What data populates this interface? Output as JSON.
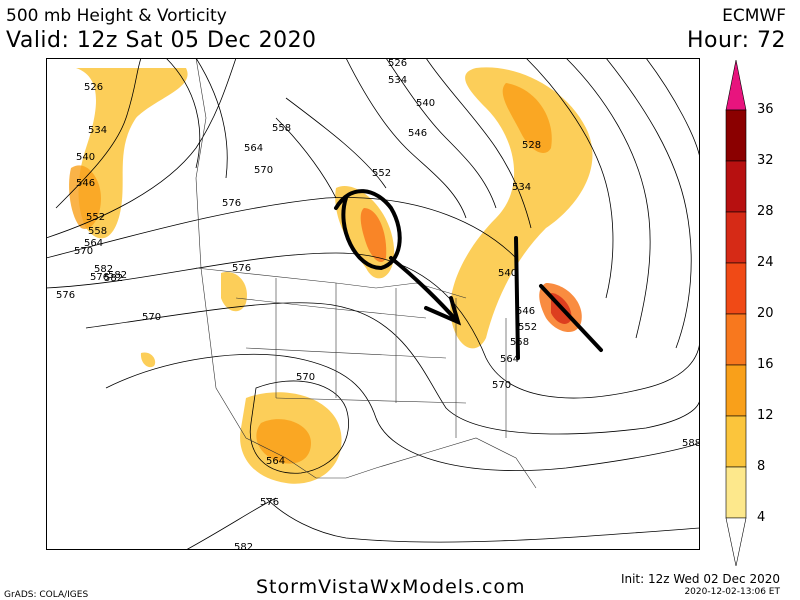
{
  "header": {
    "title_line1": "500 mb Height & Vorticity",
    "title_line2": "Valid: 12z Sat 05 Dec 2020",
    "model": "ECMWF",
    "forecast_hour": "Hour: 72"
  },
  "colorbar": {
    "labels": [
      "36",
      "32",
      "28",
      "24",
      "20",
      "16",
      "12",
      "8",
      "4"
    ],
    "colors": [
      "#e8147e",
      "#8b0000",
      "#b71010",
      "#d62a16",
      "#f04a16",
      "#f8781e",
      "#f9a01a",
      "#fbc53c",
      "#fde88c"
    ]
  },
  "contour_labels": [
    "526",
    "534",
    "540",
    "546",
    "552",
    "558",
    "564",
    "570",
    "576",
    "582",
    "526",
    "534",
    "540",
    "546",
    "552",
    "558",
    "564",
    "570",
    "576",
    "582",
    "570",
    "576",
    "582",
    "528",
    "534",
    "540",
    "546",
    "552",
    "558",
    "564",
    "570",
    "576",
    "564",
    "570",
    "576",
    "582",
    "588"
  ],
  "footer": {
    "website": "StormVistaWxModels.com",
    "grads": "GrADS: COLA/IGES",
    "init": "Init: 12z Wed 02 Dec 2020",
    "timestamp": "2020-12-02-13:06 ET"
  }
}
